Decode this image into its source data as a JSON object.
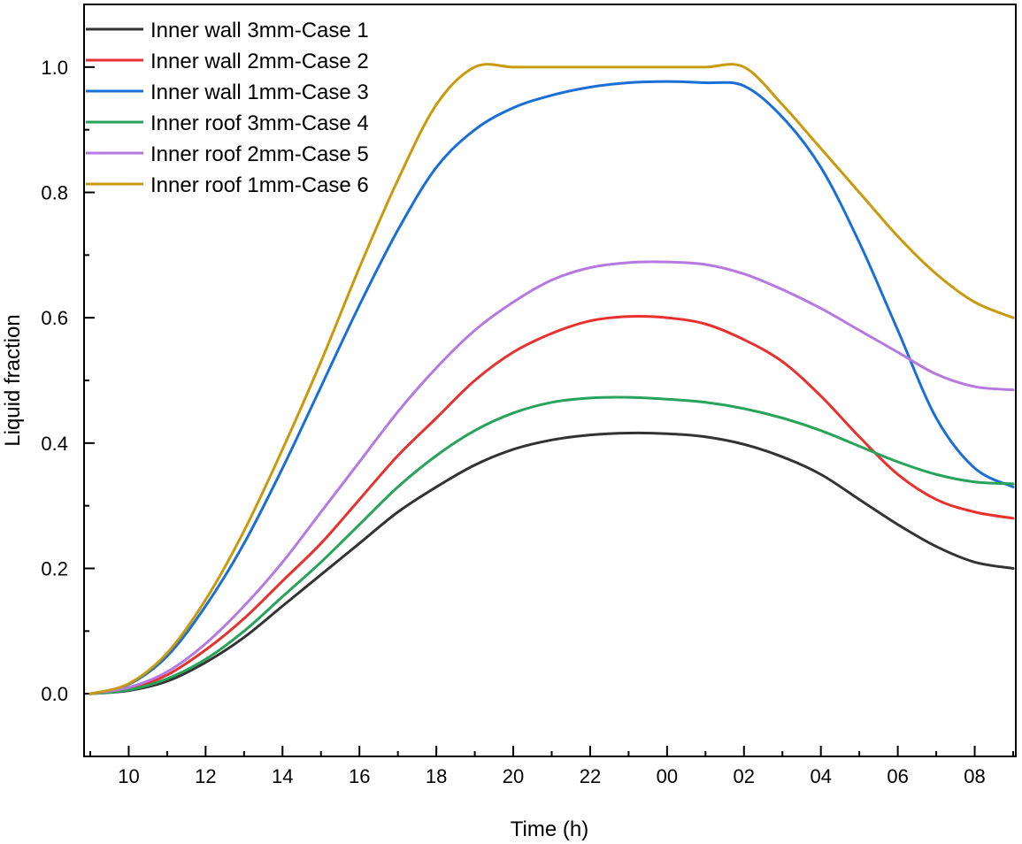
{
  "chart_data": {
    "type": "line",
    "title": "",
    "xlabel": "Time (h)",
    "ylabel": "Liquid fraction",
    "x_unit_note": "hours since 09:00 (x=0 is 09:00, x=24 is 09:00 next day)",
    "xlim": [
      0,
      24
    ],
    "ylim": [
      -0.1,
      1.1
    ],
    "grid": false,
    "legend_position": "top-left",
    "x_ticks": [
      {
        "value": 1,
        "label": "10"
      },
      {
        "value": 3,
        "label": "12"
      },
      {
        "value": 5,
        "label": "14"
      },
      {
        "value": 7,
        "label": "16"
      },
      {
        "value": 9,
        "label": "18"
      },
      {
        "value": 11,
        "label": "20"
      },
      {
        "value": 13,
        "label": "22"
      },
      {
        "value": 15,
        "label": "00"
      },
      {
        "value": 17,
        "label": "02"
      },
      {
        "value": 19,
        "label": "04"
      },
      {
        "value": 21,
        "label": "06"
      },
      {
        "value": 23,
        "label": "08"
      }
    ],
    "y_ticks": [
      {
        "value": 0.0,
        "label": "0.0"
      },
      {
        "value": 0.2,
        "label": "0.2"
      },
      {
        "value": 0.4,
        "label": "0.4"
      },
      {
        "value": 0.6,
        "label": "0.6"
      },
      {
        "value": 0.8,
        "label": "0.8"
      },
      {
        "value": 1.0,
        "label": "1.0"
      }
    ],
    "x": [
      0,
      1,
      2,
      3,
      4,
      5,
      6,
      7,
      8,
      9,
      10,
      11,
      12,
      13,
      14,
      15,
      16,
      17,
      18,
      19,
      20,
      21,
      22,
      23,
      24
    ],
    "series": [
      {
        "name": "Inner wall 3mm-Case 1",
        "color": "#333333",
        "values": [
          0.0,
          0.005,
          0.02,
          0.05,
          0.09,
          0.14,
          0.19,
          0.24,
          0.29,
          0.33,
          0.365,
          0.39,
          0.405,
          0.413,
          0.416,
          0.415,
          0.41,
          0.398,
          0.378,
          0.35,
          0.31,
          0.27,
          0.235,
          0.21,
          0.2
        ]
      },
      {
        "name": "Inner wall 2mm-Case 2",
        "color": "#e8302e",
        "values": [
          0.0,
          0.008,
          0.03,
          0.07,
          0.12,
          0.18,
          0.24,
          0.31,
          0.38,
          0.44,
          0.5,
          0.545,
          0.575,
          0.595,
          0.602,
          0.6,
          0.59,
          0.565,
          0.53,
          0.475,
          0.41,
          0.35,
          0.31,
          0.29,
          0.28
        ]
      },
      {
        "name": "Inner wall 1mm-Case 3",
        "color": "#1a6fd6",
        "values": [
          0.0,
          0.015,
          0.06,
          0.14,
          0.24,
          0.36,
          0.49,
          0.62,
          0.74,
          0.84,
          0.9,
          0.935,
          0.955,
          0.968,
          0.975,
          0.977,
          0.975,
          0.97,
          0.92,
          0.84,
          0.72,
          0.58,
          0.44,
          0.36,
          0.33
        ]
      },
      {
        "name": "Inner roof 3mm-Case 4",
        "color": "#27a35a",
        "values": [
          0.0,
          0.006,
          0.024,
          0.055,
          0.1,
          0.155,
          0.21,
          0.27,
          0.33,
          0.38,
          0.42,
          0.448,
          0.465,
          0.472,
          0.473,
          0.47,
          0.465,
          0.455,
          0.44,
          0.42,
          0.395,
          0.37,
          0.35,
          0.338,
          0.335
        ]
      },
      {
        "name": "Inner roof 2mm-Case 5",
        "color": "#b679e0",
        "values": [
          0.0,
          0.01,
          0.035,
          0.08,
          0.14,
          0.21,
          0.29,
          0.37,
          0.45,
          0.52,
          0.58,
          0.625,
          0.66,
          0.68,
          0.688,
          0.689,
          0.685,
          0.67,
          0.645,
          0.615,
          0.58,
          0.545,
          0.51,
          0.49,
          0.485
        ]
      },
      {
        "name": "Inner roof 1mm-Case 6",
        "color": "#c89a0c",
        "values": [
          0.0,
          0.016,
          0.065,
          0.15,
          0.26,
          0.39,
          0.53,
          0.68,
          0.82,
          0.94,
          1.0,
          1.0,
          1.0,
          1.0,
          1.0,
          1.0,
          1.0,
          1.0,
          0.94,
          0.87,
          0.8,
          0.73,
          0.67,
          0.625,
          0.6
        ]
      }
    ]
  }
}
